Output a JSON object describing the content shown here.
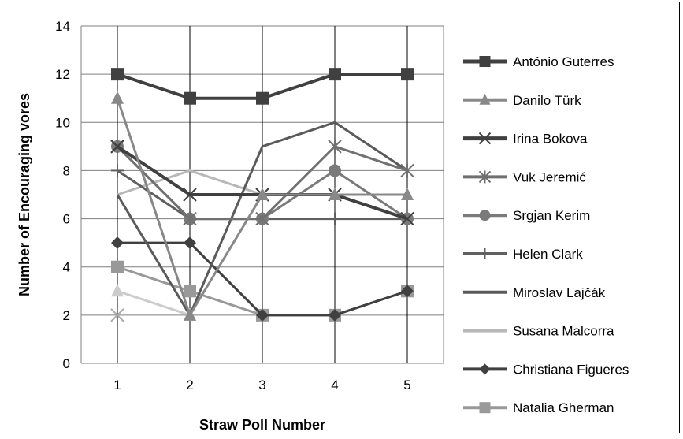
{
  "chart_data": {
    "type": "line",
    "title": "",
    "xlabel": "Straw Poll Number",
    "ylabel": "Number of Encouraging vores",
    "x": [
      1,
      2,
      3,
      4,
      5
    ],
    "ylim": [
      0,
      14
    ],
    "yticks": [
      0,
      2,
      4,
      6,
      8,
      10,
      12,
      14
    ],
    "grid": {
      "horizontal": true,
      "vertical": true
    },
    "legend_position": "right",
    "series": [
      {
        "name": "António Guterres",
        "values": [
          12,
          11,
          11,
          12,
          12
        ],
        "color": "#404040",
        "marker": "square",
        "width": 4
      },
      {
        "name": "Danilo Türk",
        "values": [
          11,
          2,
          7,
          7,
          7
        ],
        "color": "#888888",
        "marker": "triangle",
        "width": 3
      },
      {
        "name": "Irina Bokova",
        "values": [
          9,
          7,
          7,
          7,
          6
        ],
        "color": "#404040",
        "marker": "x",
        "width": 4
      },
      {
        "name": "Vuk Jeremić",
        "values": [
          9,
          6,
          6,
          9,
          8
        ],
        "color": "#707070",
        "marker": "star",
        "width": 3
      },
      {
        "name": "Srgjan Kerim",
        "values": [
          9,
          6,
          6,
          8,
          6
        ],
        "color": "#7a7a7a",
        "marker": "circle",
        "width": 3
      },
      {
        "name": "Helen Clark",
        "values": [
          8,
          6,
          6,
          6,
          6
        ],
        "color": "#606060",
        "marker": "plus",
        "width": 3
      },
      {
        "name": "Miroslav Lajčák",
        "values": [
          7,
          2,
          9,
          10,
          8
        ],
        "color": "#5a5a5a",
        "marker": "none",
        "width": 3
      },
      {
        "name": "Susana Malcorra",
        "values": [
          7,
          8,
          7,
          7,
          7
        ],
        "color": "#b8b8b8",
        "marker": "none",
        "width": 3
      },
      {
        "name": "Christiana Figueres",
        "values": [
          5,
          5,
          2,
          2,
          3
        ],
        "color": "#404040",
        "marker": "diamond",
        "width": 3
      },
      {
        "name": "Natalia Gherman",
        "values": [
          4,
          3,
          2,
          2,
          3
        ],
        "color": "#999999",
        "marker": "square",
        "width": 3
      },
      {
        "name": "",
        "values": [
          2,
          null,
          null,
          null,
          null
        ],
        "color": "#aaaaaa",
        "marker": "x",
        "width": 3
      },
      {
        "name": "",
        "values": [
          3,
          2,
          null,
          null,
          null
        ],
        "color": "#cccccc",
        "marker": "triangle",
        "width": 3
      }
    ]
  }
}
